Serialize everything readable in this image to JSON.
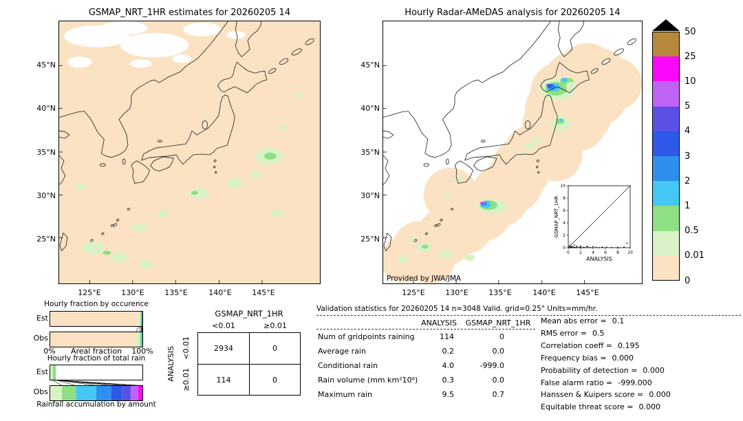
{
  "left_map": {
    "title": "GSMAP_NRT_1HR estimates for 20260205 14",
    "lat_labels": [
      "45°N",
      "40°N",
      "35°N",
      "30°N",
      "25°N"
    ],
    "lon_labels": [
      "125°E",
      "130°E",
      "135°E",
      "140°E",
      "145°E"
    ]
  },
  "right_map": {
    "title": "Hourly Radar-AMeDAS analysis for 20260205 14",
    "credit": "Provided by JWA/JMA",
    "lat_labels": [
      "45°N",
      "40°N",
      "35°N",
      "30°N",
      "25°N"
    ],
    "lon_labels": [
      "125°E",
      "130°E",
      "135°E",
      "140°E",
      "145°E"
    ],
    "inset": {
      "xlabel": "ANALYSIS",
      "ylabel": "GSMAP_NRT_1HR"
    }
  },
  "colorbar": {
    "labels": [
      "50",
      "25",
      "10",
      "5",
      "4",
      "3",
      "2",
      "1",
      "0.5",
      "0.01",
      "0"
    ],
    "colors": [
      "#b5883c",
      "#f908f9",
      "#bf63f5",
      "#5b50e6",
      "#2f59e8",
      "#2f8fef",
      "#44c7f2",
      "#8fdf85",
      "#d8f2c6",
      "#fbe2c2"
    ],
    "overflow_color": "#000000",
    "units": "mm/hr"
  },
  "occurrence_chart": {
    "title": "Hourly fraction by occurence",
    "rows": [
      "Est",
      "Obs"
    ],
    "axis_left": "0%",
    "axis_label": "Areal fraction",
    "axis_right": "100%"
  },
  "totalrain_chart": {
    "title": "Hourly fraction of total rain",
    "rows": [
      "Est",
      "Obs"
    ],
    "caption": "Rainfall accumulation by amount"
  },
  "contingency": {
    "title": "GSMAP_NRT_1HR",
    "side_label": "ANALYSIS",
    "col_headers": [
      "<0.01",
      "≥0.01"
    ],
    "row_headers": [
      "<0.01",
      "≥0.01"
    ],
    "cells": [
      [
        "2934",
        "0"
      ],
      [
        "114",
        "0"
      ]
    ]
  },
  "stats": {
    "title": "Validation statistics for 20260205 14  n=3048 Valid. grid=0.25° Units=mm/hr.",
    "col_headers": [
      "ANALYSIS",
      "GSMAP_NRT_1HR"
    ],
    "rows": [
      {
        "label": "Num of gridpoints raining",
        "a": "114",
        "g": "0"
      },
      {
        "label": "Average rain",
        "a": "0.2",
        "g": "0.0"
      },
      {
        "label": "Conditional rain",
        "a": "4.0",
        "g": "-999.0"
      },
      {
        "label": "Rain volume (mm km²10⁶)",
        "a": "0.3",
        "g": "0.0"
      },
      {
        "label": "Maximum rain",
        "a": "9.5",
        "g": "0.7"
      }
    ],
    "metrics": [
      {
        "label": "Mean abs error =",
        "value": "0.1"
      },
      {
        "label": "RMS error =",
        "value": "0.5"
      },
      {
        "label": "Correlation coeff =",
        "value": "0.195"
      },
      {
        "label": "Frequency bias =",
        "value": "0.000"
      },
      {
        "label": "Probability of detection =",
        "value": "0.000"
      },
      {
        "label": "False alarm ratio =",
        "value": "-999.000"
      },
      {
        "label": "Hanssen & Kuipers score =",
        "value": "0.000"
      },
      {
        "label": "Equitable threat score =",
        "value": "0.000"
      }
    ]
  },
  "chart_data": [
    {
      "type": "map",
      "name": "gsmap_estimates_map",
      "title": "GSMAP_NRT_1HR estimates for 20260205 14",
      "lat_ticks": [
        "45°N",
        "40°N",
        "35°N",
        "30°N",
        "25°N"
      ],
      "lon_ticks": [
        "125°E",
        "130°E",
        "135°E",
        "140°E",
        "145°E"
      ],
      "units": "mm/hr",
      "colorbar_ticks": [
        0,
        0.01,
        0.5,
        1,
        2,
        3,
        4,
        5,
        10,
        25,
        50
      ]
    },
    {
      "type": "map",
      "name": "radar_amedas_map",
      "title": "Hourly Radar-AMeDAS analysis for 20260205 14",
      "credit": "Provided by JWA/JMA",
      "lat_ticks": [
        "45°N",
        "40°N",
        "35°N",
        "30°N",
        "25°N"
      ],
      "lon_ticks": [
        "125°E",
        "130°E",
        "135°E",
        "140°E",
        "145°E"
      ],
      "units": "mm/hr",
      "colorbar_ticks": [
        0,
        0.01,
        0.5,
        1,
        2,
        3,
        4,
        5,
        10,
        25,
        50
      ]
    },
    {
      "type": "scatter",
      "name": "gsmap_vs_analysis_scatter",
      "xlabel": "ANALYSIS",
      "ylabel": "GSMAP_NRT_1HR",
      "xlim": [
        0,
        10
      ],
      "ylim": [
        0,
        10
      ],
      "x_ticks": [
        0,
        2,
        4,
        6,
        8,
        10
      ],
      "y_ticks": [
        0,
        2,
        4,
        6,
        8,
        10
      ],
      "identity_line": true,
      "points": [
        [
          0.1,
          0.0
        ],
        [
          0.2,
          0.3
        ],
        [
          0.3,
          0.0
        ],
        [
          0.4,
          0.15
        ],
        [
          0.5,
          0.05
        ],
        [
          0.6,
          0.2
        ],
        [
          0.7,
          0.0
        ],
        [
          0.9,
          0.1
        ],
        [
          1.0,
          0.4
        ],
        [
          1.1,
          0.0
        ],
        [
          1.3,
          0.05
        ],
        [
          1.4,
          0.2
        ],
        [
          1.6,
          0.0
        ],
        [
          1.9,
          0.1
        ],
        [
          2.0,
          0.25
        ],
        [
          2.2,
          0.0
        ],
        [
          2.5,
          0.05
        ],
        [
          2.8,
          0.0
        ],
        [
          3.0,
          0.2
        ],
        [
          3.2,
          0.1
        ],
        [
          3.6,
          0.0
        ],
        [
          4.0,
          0.15
        ],
        [
          4.5,
          0.05
        ],
        [
          5.0,
          0.0
        ],
        [
          5.5,
          0.1
        ],
        [
          6.2,
          0.05
        ],
        [
          7.0,
          0.0
        ],
        [
          8.0,
          0.05
        ],
        [
          9.0,
          0.1
        ],
        [
          9.5,
          0.7
        ]
      ]
    },
    {
      "type": "bar",
      "name": "hourly_fraction_by_occurrence",
      "title": "Hourly fraction by occurence",
      "stacked": true,
      "orientation": "horizontal",
      "categories_mm_per_hr": [
        "0-0.01",
        "0.01-0.5",
        "0.5-1",
        "1-2",
        "2-3",
        "3-4",
        "4-5",
        "5-10",
        "10-25",
        "25-50"
      ],
      "series": [
        {
          "name": "Est",
          "fractions": [
            0.96,
            0.013,
            0.009,
            0.006,
            0.005,
            0.003,
            0.002,
            0.001,
            0.0005,
            0.0005
          ]
        },
        {
          "name": "Obs",
          "fractions": [
            0.925,
            0.045,
            0.015,
            0.007,
            0.004,
            0.002,
            0.001,
            0.0005,
            0.0003,
            0.0002
          ]
        }
      ],
      "xlabel": "Areal fraction",
      "x_range": [
        "0%",
        "100%"
      ]
    },
    {
      "type": "bar",
      "name": "hourly_fraction_of_total_rain",
      "title": "Hourly fraction of total rain",
      "stacked": true,
      "orientation": "horizontal",
      "categories_mm_per_hr": [
        "0.01-0.5",
        "0.5-1",
        "1-2",
        "2-3",
        "3-4",
        "4-5",
        "5-10",
        "10-25"
      ],
      "series": [
        {
          "name": "Est",
          "fractions": [
            0.03,
            0.035,
            0,
            0,
            0,
            0,
            0,
            0
          ]
        },
        {
          "name": "Obs",
          "fractions": [
            0.13,
            0.15,
            0.22,
            0.16,
            0.12,
            0.09,
            0.08,
            0.05
          ]
        }
      ],
      "caption": "Rainfall accumulation by amount"
    },
    {
      "type": "table",
      "name": "contingency_table",
      "title": "GSMAP_NRT_1HR",
      "row_axis": "ANALYSIS",
      "col_headers": [
        "<0.01",
        "≥0.01"
      ],
      "row_headers": [
        "<0.01",
        "≥0.01"
      ],
      "rows": [
        [
          2934,
          0
        ],
        [
          114,
          0
        ]
      ]
    },
    {
      "type": "table",
      "name": "validation_statistics",
      "title": "Validation statistics for 20260205 14  n=3048 Valid. grid=0.25° Units=mm/hr.",
      "n": 3048,
      "grid": "0.25°",
      "units": "mm/hr",
      "col_headers": [
        "ANALYSIS",
        "GSMAP_NRT_1HR"
      ],
      "rows": [
        [
          "Num of gridpoints raining",
          114,
          0
        ],
        [
          "Average rain",
          0.2,
          0.0
        ],
        [
          "Conditional rain",
          4.0,
          -999.0
        ],
        [
          "Rain volume (mm km²10⁶)",
          0.3,
          0.0
        ],
        [
          "Maximum rain",
          9.5,
          0.7
        ]
      ],
      "metrics": [
        [
          "Mean abs error",
          0.1
        ],
        [
          "RMS error",
          0.5
        ],
        [
          "Correlation coeff",
          0.195
        ],
        [
          "Frequency bias",
          0.0
        ],
        [
          "Probability of detection",
          0.0
        ],
        [
          "False alarm ratio",
          -999.0
        ],
        [
          "Hanssen & Kuipers score",
          0.0
        ],
        [
          "Equitable threat score",
          0.0
        ]
      ]
    }
  ]
}
